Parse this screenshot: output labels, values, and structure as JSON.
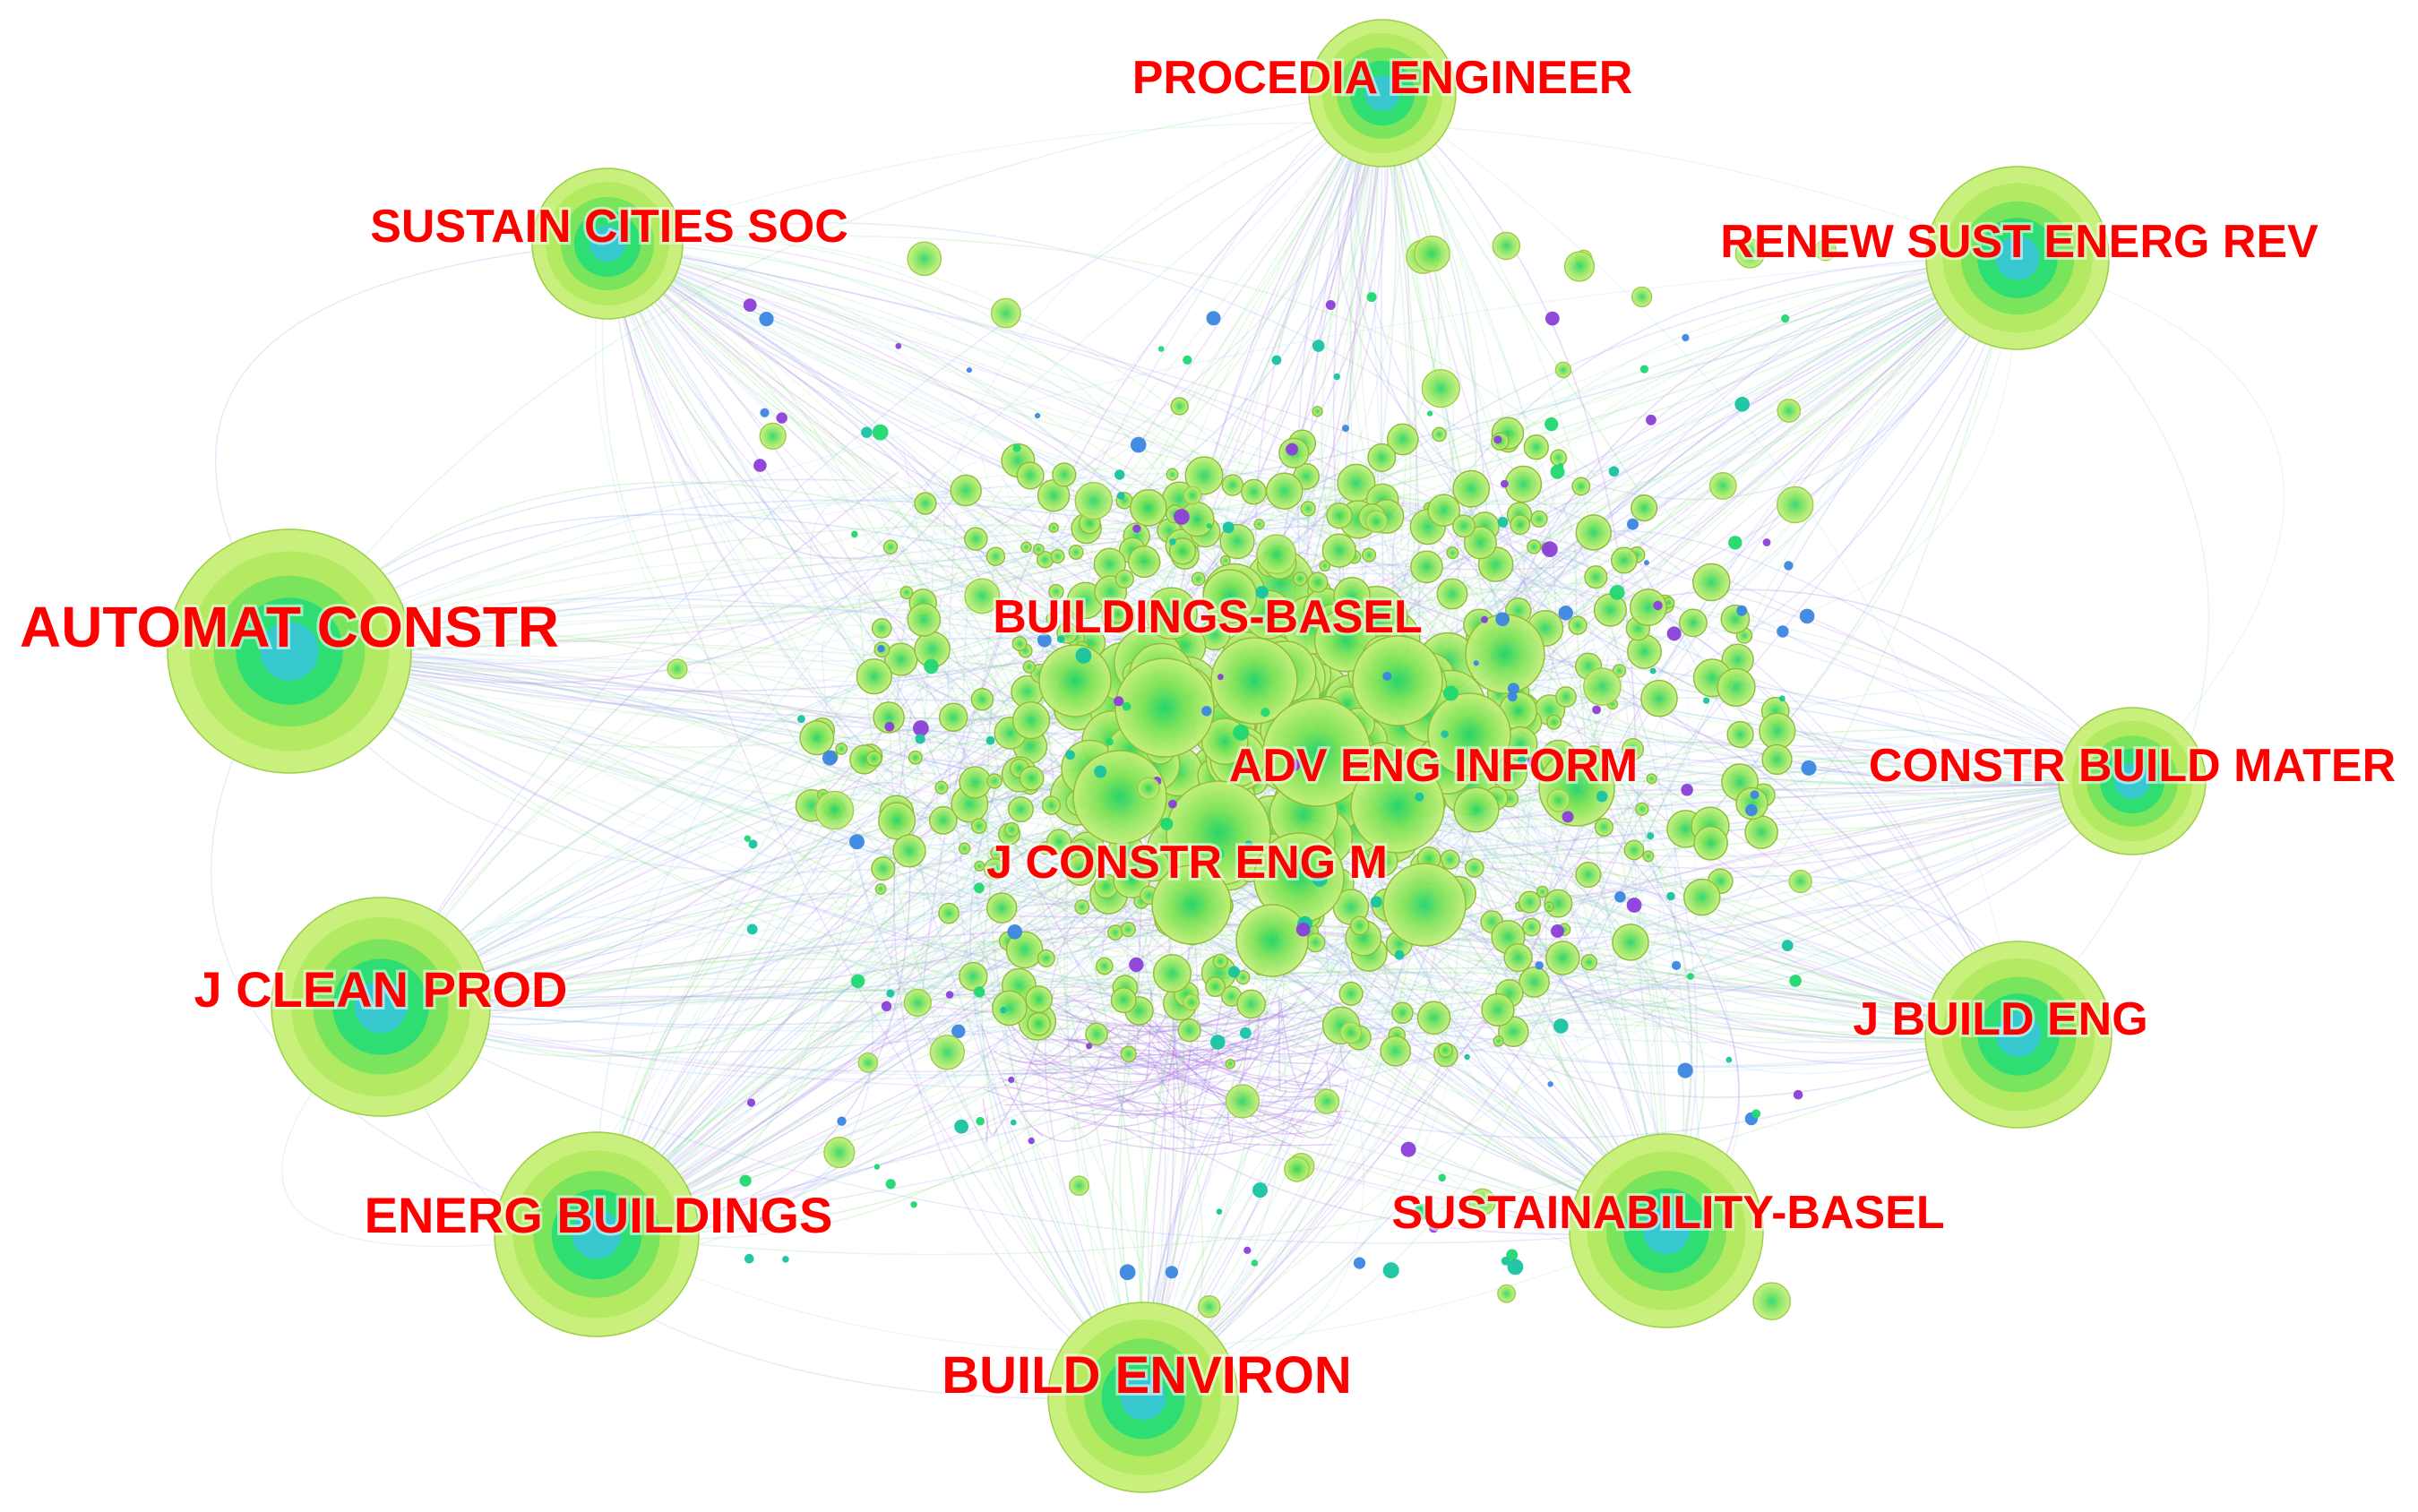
{
  "figure": {
    "labels": {
      "procedia": "PROCEDIA ENGINEER",
      "sustain_cities": "SUSTAIN CITIES SOC",
      "renew": "RENEW SUST ENERG REV",
      "automat": "AUTOMAT CONSTR",
      "buildings": "BUILDINGS-BASEL",
      "adv_eng": "ADV ENG INFORM",
      "constr_build_mater": "CONSTR BUILD MATER",
      "j_constr": "J CONSTR ENG M",
      "j_clean": "J CLEAN PROD",
      "j_build_eng": "J BUILD ENG",
      "energ_buildings": "ENERG BUILDINGS",
      "sustainability": "SUSTAINABILITY-BASEL",
      "build_environ": "BUILD ENVIRON"
    },
    "colors": {
      "label": "#ff0000",
      "node_outer": "#c9ef7c",
      "node_mid": "#a8e65a",
      "node_core": "#20d870",
      "node_center": "#33c3d6",
      "edge_green": "#7fe08a",
      "edge_blue": "#8aa6f0",
      "edge_purple": "#b07be6",
      "small_teal": "#17c3a0",
      "small_purple": "#8b3fd8",
      "small_blue": "#3b86e0"
    }
  }
}
